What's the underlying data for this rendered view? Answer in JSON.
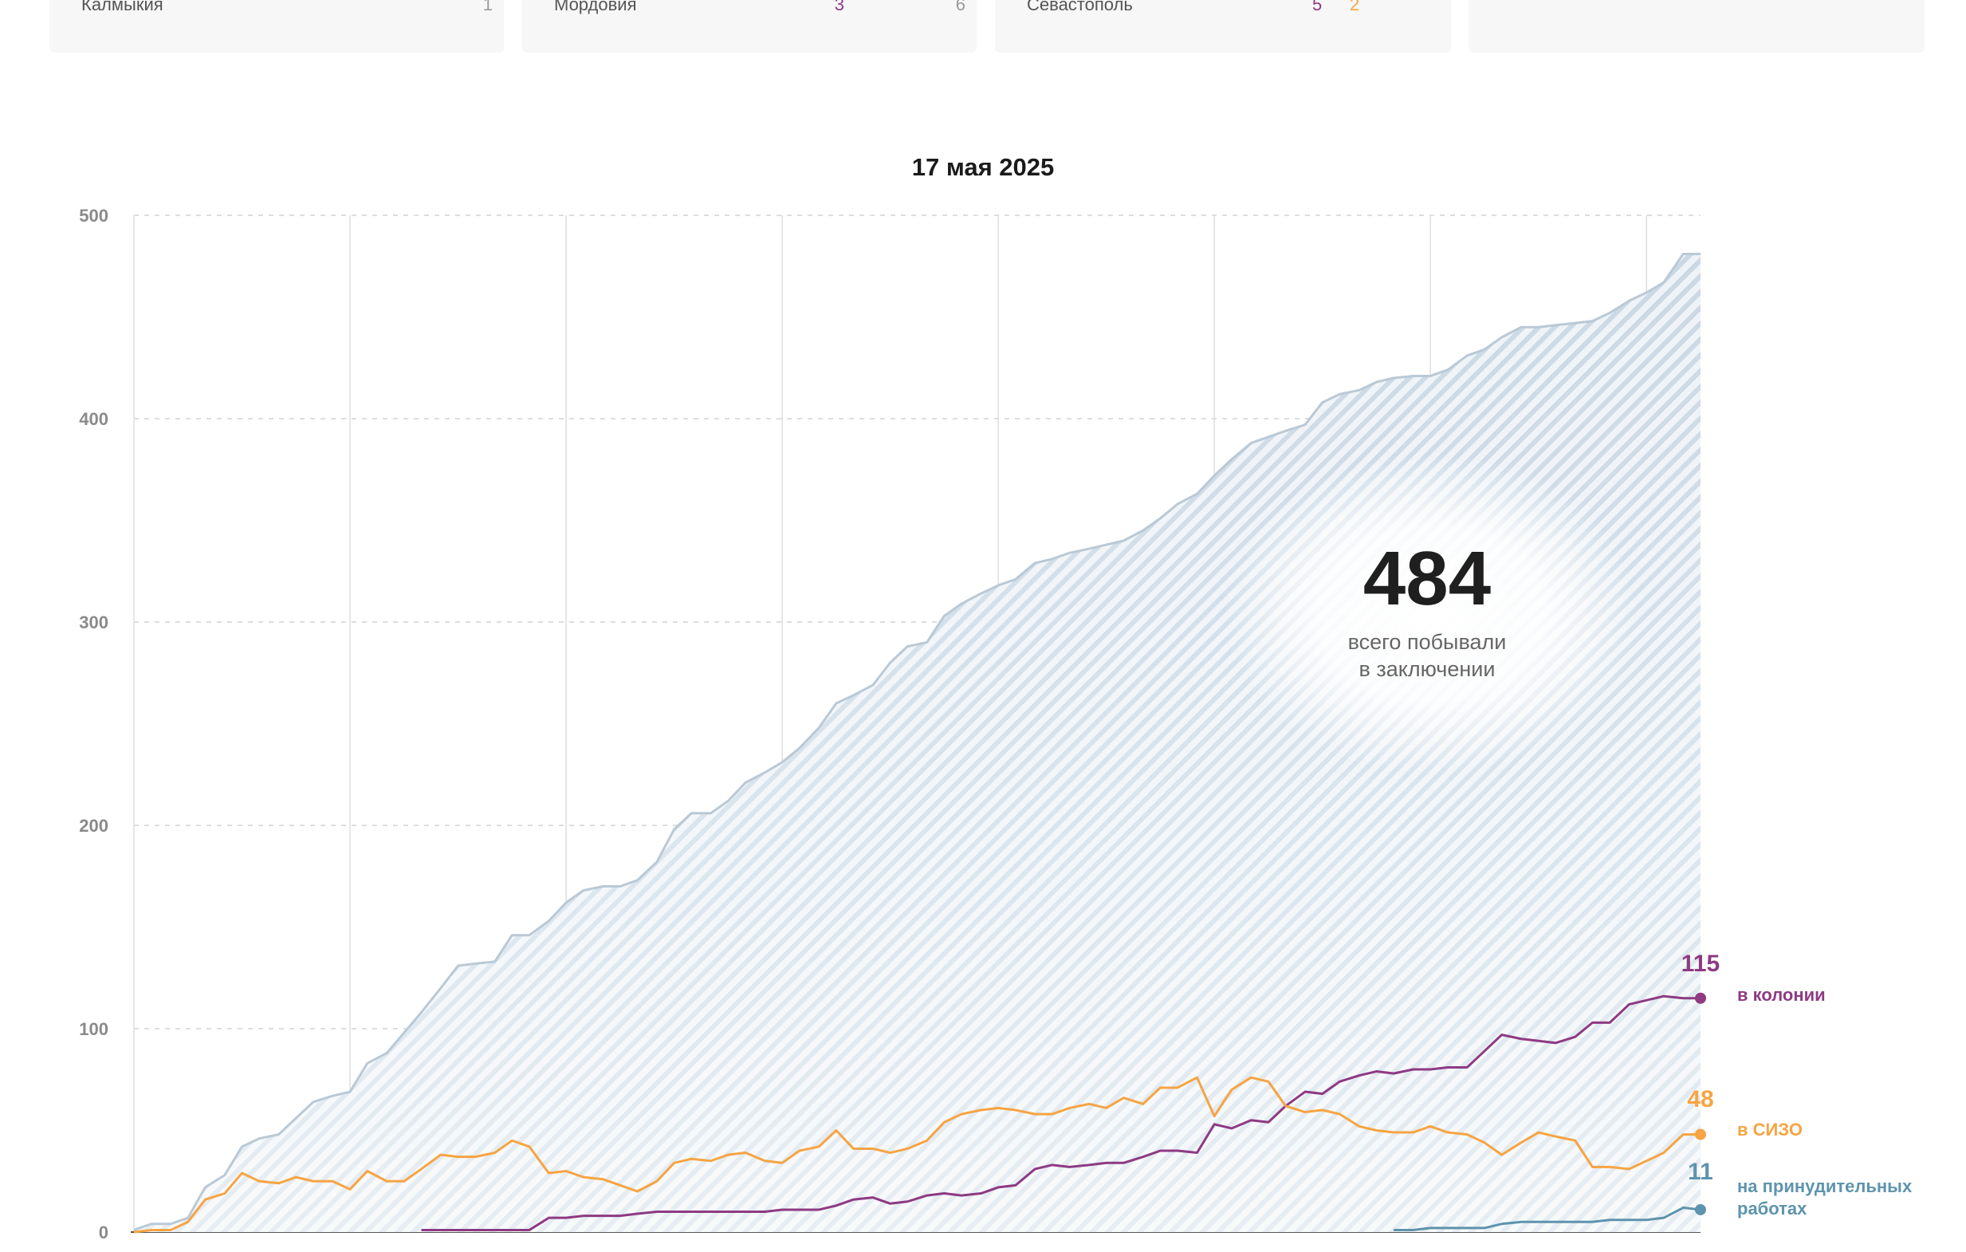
{
  "summary_cards": [
    {
      "region": "Калмыкия",
      "v1": "",
      "v2": "1"
    },
    {
      "region": "Мордовия",
      "v1": "3",
      "v2": "6"
    },
    {
      "region": "Севастополь",
      "v1": "5",
      "v2": "2"
    },
    {
      "region": "",
      "v1": "",
      "v2": ""
    }
  ],
  "colors": {
    "total": "#b9c9d6",
    "colony": "#8e3a83",
    "sizo": "#f7a443",
    "forced": "#5e94ad",
    "grid": "#d2d2d2",
    "tick_text": "#8a8a8a",
    "v1_color": "#8e3a83",
    "v2_color": "#f7a443",
    "v2_muted": "#9a9a9a"
  },
  "chart_data": {
    "type": "area",
    "title": "17 мая 2025",
    "ylim": [
      0,
      500
    ],
    "yticks": [
      0,
      100,
      200,
      300,
      400,
      500
    ],
    "xlim": [
      2018,
      2025.25
    ],
    "grid": true,
    "big_number": "484",
    "big_label_line1": "всего побывали",
    "big_label_line2": "в заключении",
    "series": [
      {
        "key": "total",
        "x": [
          2018.0,
          2018.08,
          2018.17,
          2018.25,
          2018.33,
          2018.42,
          2018.5,
          2018.58,
          2018.67,
          2018.75,
          2018.83,
          2018.92,
          2019.0,
          2019.08,
          2019.17,
          2019.25,
          2019.33,
          2019.42,
          2019.5,
          2019.58,
          2019.67,
          2019.75,
          2019.83,
          2019.92,
          2020.0,
          2020.08,
          2020.17,
          2020.25,
          2020.33,
          2020.42,
          2020.5,
          2020.58,
          2020.67,
          2020.75,
          2020.83,
          2020.92,
          2021.0,
          2021.08,
          2021.17,
          2021.25,
          2021.33,
          2021.42,
          2021.5,
          2021.58,
          2021.67,
          2021.75,
          2021.83,
          2021.92,
          2022.0,
          2022.08,
          2022.17,
          2022.25,
          2022.33,
          2022.42,
          2022.5,
          2022.58,
          2022.67,
          2022.75,
          2022.83,
          2022.92,
          2023.0,
          2023.08,
          2023.17,
          2023.25,
          2023.33,
          2023.42,
          2023.5,
          2023.58,
          2023.67,
          2023.75,
          2023.83,
          2023.92,
          2024.0,
          2024.08,
          2024.17,
          2024.25,
          2024.33,
          2024.42,
          2024.5,
          2024.58,
          2024.67,
          2024.75,
          2024.83,
          2024.92,
          2025.0,
          2025.08,
          2025.17,
          2025.25
        ],
        "y": [
          1,
          4,
          4,
          7,
          22,
          28,
          42,
          46,
          48,
          56,
          64,
          67,
          69,
          83,
          88,
          98,
          108,
          120,
          131,
          132,
          133,
          146,
          146,
          153,
          162,
          168,
          170,
          170,
          173,
          182,
          198,
          206,
          206,
          212,
          221,
          226,
          231,
          238,
          248,
          260,
          264,
          269,
          280,
          288,
          290,
          303,
          309,
          314,
          318,
          321,
          329,
          331,
          334,
          336,
          338,
          340,
          345,
          351,
          358,
          363,
          372,
          380,
          388,
          391,
          394,
          397,
          408,
          412,
          414,
          418,
          420,
          421,
          421,
          424,
          431,
          434,
          440,
          445,
          445,
          446,
          447,
          448,
          452,
          458,
          462,
          467,
          481,
          481
        ]
      },
      {
        "key": "colony",
        "name": "в колонии",
        "end_label": "115",
        "x": [
          2019.33,
          2019.42,
          2019.5,
          2019.58,
          2019.67,
          2019.75,
          2019.83,
          2019.92,
          2020.0,
          2020.08,
          2020.17,
          2020.25,
          2020.33,
          2020.42,
          2020.5,
          2020.58,
          2020.67,
          2020.75,
          2020.83,
          2020.92,
          2021.0,
          2021.08,
          2021.17,
          2021.25,
          2021.33,
          2021.42,
          2021.5,
          2021.58,
          2021.67,
          2021.75,
          2021.83,
          2021.92,
          2022.0,
          2022.08,
          2022.17,
          2022.25,
          2022.33,
          2022.42,
          2022.5,
          2022.58,
          2022.67,
          2022.75,
          2022.83,
          2022.92,
          2023.0,
          2023.08,
          2023.17,
          2023.25,
          2023.33,
          2023.42,
          2023.5,
          2023.58,
          2023.67,
          2023.75,
          2023.83,
          2023.92,
          2024.0,
          2024.08,
          2024.17,
          2024.25,
          2024.33,
          2024.42,
          2024.5,
          2024.58,
          2024.67,
          2024.75,
          2024.83,
          2024.92,
          2025.0,
          2025.08,
          2025.17,
          2025.25
        ],
        "y": [
          1,
          1,
          1,
          1,
          1,
          1,
          1,
          7,
          7,
          8,
          8,
          8,
          9,
          10,
          10,
          10,
          10,
          10,
          10,
          10,
          11,
          11,
          11,
          13,
          16,
          17,
          14,
          15,
          18,
          19,
          18,
          19,
          22,
          23,
          31,
          33,
          32,
          33,
          34,
          34,
          37,
          40,
          40,
          39,
          53,
          51,
          55,
          54,
          62,
          69,
          68,
          74,
          77,
          79,
          78,
          80,
          80,
          81,
          81,
          89,
          97,
          95,
          94,
          93,
          96,
          103,
          103,
          112,
          114,
          116,
          115,
          115
        ]
      },
      {
        "key": "sizo",
        "name": "в СИЗО",
        "end_label": "48",
        "x": [
          2018.0,
          2018.08,
          2018.17,
          2018.25,
          2018.33,
          2018.42,
          2018.5,
          2018.58,
          2018.67,
          2018.75,
          2018.83,
          2018.92,
          2019.0,
          2019.08,
          2019.17,
          2019.25,
          2019.33,
          2019.42,
          2019.5,
          2019.58,
          2019.67,
          2019.75,
          2019.83,
          2019.92,
          2020.0,
          2020.08,
          2020.17,
          2020.25,
          2020.33,
          2020.42,
          2020.5,
          2020.58,
          2020.67,
          2020.75,
          2020.83,
          2020.92,
          2021.0,
          2021.08,
          2021.17,
          2021.25,
          2021.33,
          2021.42,
          2021.5,
          2021.58,
          2021.67,
          2021.75,
          2021.83,
          2021.92,
          2022.0,
          2022.08,
          2022.17,
          2022.25,
          2022.33,
          2022.42,
          2022.5,
          2022.58,
          2022.67,
          2022.75,
          2022.83,
          2022.92,
          2023.0,
          2023.08,
          2023.17,
          2023.25,
          2023.33,
          2023.42,
          2023.5,
          2023.58,
          2023.67,
          2023.75,
          2023.83,
          2023.92,
          2024.0,
          2024.08,
          2024.17,
          2024.25,
          2024.33,
          2024.42,
          2024.5,
          2024.58,
          2024.67,
          2024.75,
          2024.83,
          2024.92,
          2025.0,
          2025.08,
          2025.17,
          2025.25
        ],
        "y": [
          0,
          1,
          1,
          5,
          16,
          19,
          29,
          25,
          24,
          27,
          25,
          25,
          21,
          30,
          25,
          25,
          31,
          38,
          37,
          37,
          39,
          45,
          42,
          29,
          30,
          27,
          26,
          23,
          20,
          25,
          34,
          36,
          35,
          38,
          39,
          35,
          34,
          40,
          42,
          50,
          41,
          41,
          39,
          41,
          45,
          54,
          58,
          60,
          61,
          60,
          58,
          58,
          61,
          63,
          61,
          66,
          63,
          71,
          71,
          76,
          57,
          70,
          76,
          74,
          62,
          59,
          60,
          58,
          52,
          50,
          49,
          49,
          52,
          49,
          48,
          44,
          38,
          44,
          49,
          47,
          45,
          32,
          32,
          31,
          35,
          39,
          48,
          48
        ]
      },
      {
        "key": "forced",
        "name": "на принудительных работах",
        "name_line1": "на принудительных",
        "name_line2": "работах",
        "end_label": "11",
        "x": [
          2023.83,
          2023.92,
          2024.0,
          2024.08,
          2024.17,
          2024.25,
          2024.33,
          2024.42,
          2024.5,
          2024.58,
          2024.67,
          2024.75,
          2024.83,
          2024.92,
          2025.0,
          2025.08,
          2025.17,
          2025.25
        ],
        "y": [
          1,
          1,
          2,
          2,
          2,
          2,
          4,
          5,
          5,
          5,
          5,
          5,
          6,
          6,
          6,
          7,
          12,
          11
        ]
      }
    ]
  }
}
